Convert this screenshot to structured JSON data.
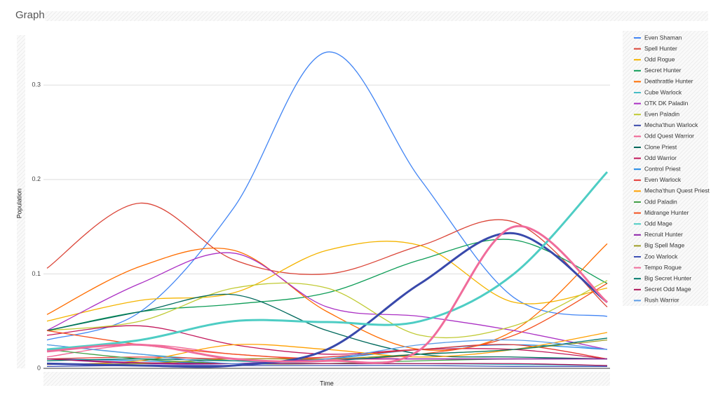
{
  "chart_data": {
    "type": "line",
    "title": "Graph",
    "x_label": "Time",
    "y_label": "Population",
    "categories": [
      null,
      null,
      null,
      null,
      null,
      null,
      null
    ],
    "ylim": [
      0,
      0.35
    ],
    "yticks": [
      0,
      0.1,
      0.2,
      0.3
    ],
    "grid": true,
    "legend": "right",
    "series": [
      {
        "name": "Even Shaman",
        "color": "#4285f4",
        "values": [
          0.03,
          0.06,
          0.17,
          0.335,
          0.2,
          0.075,
          0.055
        ]
      },
      {
        "name": "Spell Hunter",
        "color": "#db4437",
        "values": [
          0.106,
          0.175,
          0.115,
          0.1,
          0.13,
          0.155,
          0.065
        ]
      },
      {
        "name": "Odd Rogue",
        "color": "#f4b400",
        "values": [
          0.05,
          0.072,
          0.08,
          0.125,
          0.13,
          0.07,
          0.085
        ]
      },
      {
        "name": "Secret Hunter",
        "color": "#0f9d58",
        "values": [
          0.04,
          0.06,
          0.068,
          0.08,
          0.115,
          0.136,
          0.09
        ]
      },
      {
        "name": "Deathrattle Hunter",
        "color": "#ff6d00",
        "values": [
          0.057,
          0.108,
          0.125,
          0.06,
          0.02,
          0.04,
          0.132
        ]
      },
      {
        "name": "Cube Warlock",
        "color": "#46bdc6",
        "values": [
          0.025,
          0.015,
          0.008,
          0.005,
          0.005,
          0.004,
          0.003
        ]
      },
      {
        "name": "OTK DK Paladin",
        "color": "#ab30c4",
        "values": [
          0.04,
          0.09,
          0.122,
          0.065,
          0.055,
          0.04,
          0.02
        ]
      },
      {
        "name": "Even Paladin",
        "color": "#c0ca33",
        "values": [
          0.04,
          0.05,
          0.085,
          0.085,
          0.035,
          0.045,
          0.093
        ]
      },
      {
        "name": "Mecha'thun Warlock",
        "color": "#3949ab",
        "width": 3,
        "values": [
          0.005,
          0.003,
          0.003,
          0.02,
          0.09,
          0.143,
          0.07
        ]
      },
      {
        "name": "Odd Quest Warrior",
        "color": "#f06292",
        "values": [
          0.012,
          0.025,
          0.015,
          0.01,
          0.01,
          0.01,
          0.01
        ]
      },
      {
        "name": "Clone Priest",
        "color": "#00695c",
        "values": [
          0.04,
          0.06,
          0.078,
          0.04,
          0.015,
          0.012,
          0.01
        ]
      },
      {
        "name": "Odd Warrior",
        "color": "#c2185b",
        "values": [
          0.035,
          0.045,
          0.025,
          0.015,
          0.02,
          0.02,
          0.01
        ]
      },
      {
        "name": "Control Priest",
        "color": "#1e88e5",
        "values": [
          0.01,
          0.008,
          0.005,
          0.01,
          0.02,
          0.025,
          0.02
        ]
      },
      {
        "name": "Even Warlock",
        "color": "#e53935",
        "values": [
          0.01,
          0.012,
          0.01,
          0.012,
          0.02,
          0.025,
          0.01
        ]
      },
      {
        "name": "Mecha'thun Quest Priest",
        "color": "#ffa000",
        "values": [
          0.004,
          0.008,
          0.025,
          0.02,
          0.012,
          0.02,
          0.038
        ]
      },
      {
        "name": "Odd Paladin",
        "color": "#43a047",
        "values": [
          0.02,
          0.01,
          0.005,
          0.005,
          0.008,
          0.01,
          0.01
        ]
      },
      {
        "name": "Midrange Hunter",
        "color": "#f4511e",
        "values": [
          0.04,
          0.025,
          0.015,
          0.01,
          0.015,
          0.035,
          0.09
        ]
      },
      {
        "name": "Odd Mage",
        "color": "#4ecdc4",
        "width": 3,
        "values": [
          0.02,
          0.03,
          0.05,
          0.049,
          0.05,
          0.1,
          0.208
        ]
      },
      {
        "name": "Recruit Hunter",
        "color": "#8e24aa",
        "values": [
          0.01,
          0.005,
          0.005,
          0.01,
          0.01,
          0.01,
          0.01
        ]
      },
      {
        "name": "Big Spell Mage",
        "color": "#9e9d24",
        "values": [
          0.005,
          0.005,
          0.01,
          0.01,
          0.015,
          0.02,
          0.03
        ]
      },
      {
        "name": "Zoo Warlock",
        "color": "#3f51b5",
        "values": [
          0.002,
          0.003,
          0.003,
          0.003,
          0.003,
          0.002,
          0.002
        ]
      },
      {
        "name": "Tempo Rogue",
        "color": "#f06c9b",
        "width": 3,
        "values": [
          0.018,
          0.025,
          0.01,
          0.008,
          0.02,
          0.15,
          0.07
        ]
      },
      {
        "name": "Big Secret Hunter",
        "color": "#00796b",
        "values": [
          0.008,
          0.01,
          0.008,
          0.008,
          0.015,
          0.02,
          0.032
        ]
      },
      {
        "name": "Secret Odd Mage",
        "color": "#ad1457",
        "values": [
          0.01,
          0.006,
          0.005,
          0.005,
          0.005,
          0.005,
          0.003
        ]
      },
      {
        "name": "Rush Warrior",
        "color": "#5c9ce6",
        "values": [
          0.025,
          0.015,
          0.005,
          0.01,
          0.025,
          0.03,
          0.02
        ]
      }
    ]
  }
}
